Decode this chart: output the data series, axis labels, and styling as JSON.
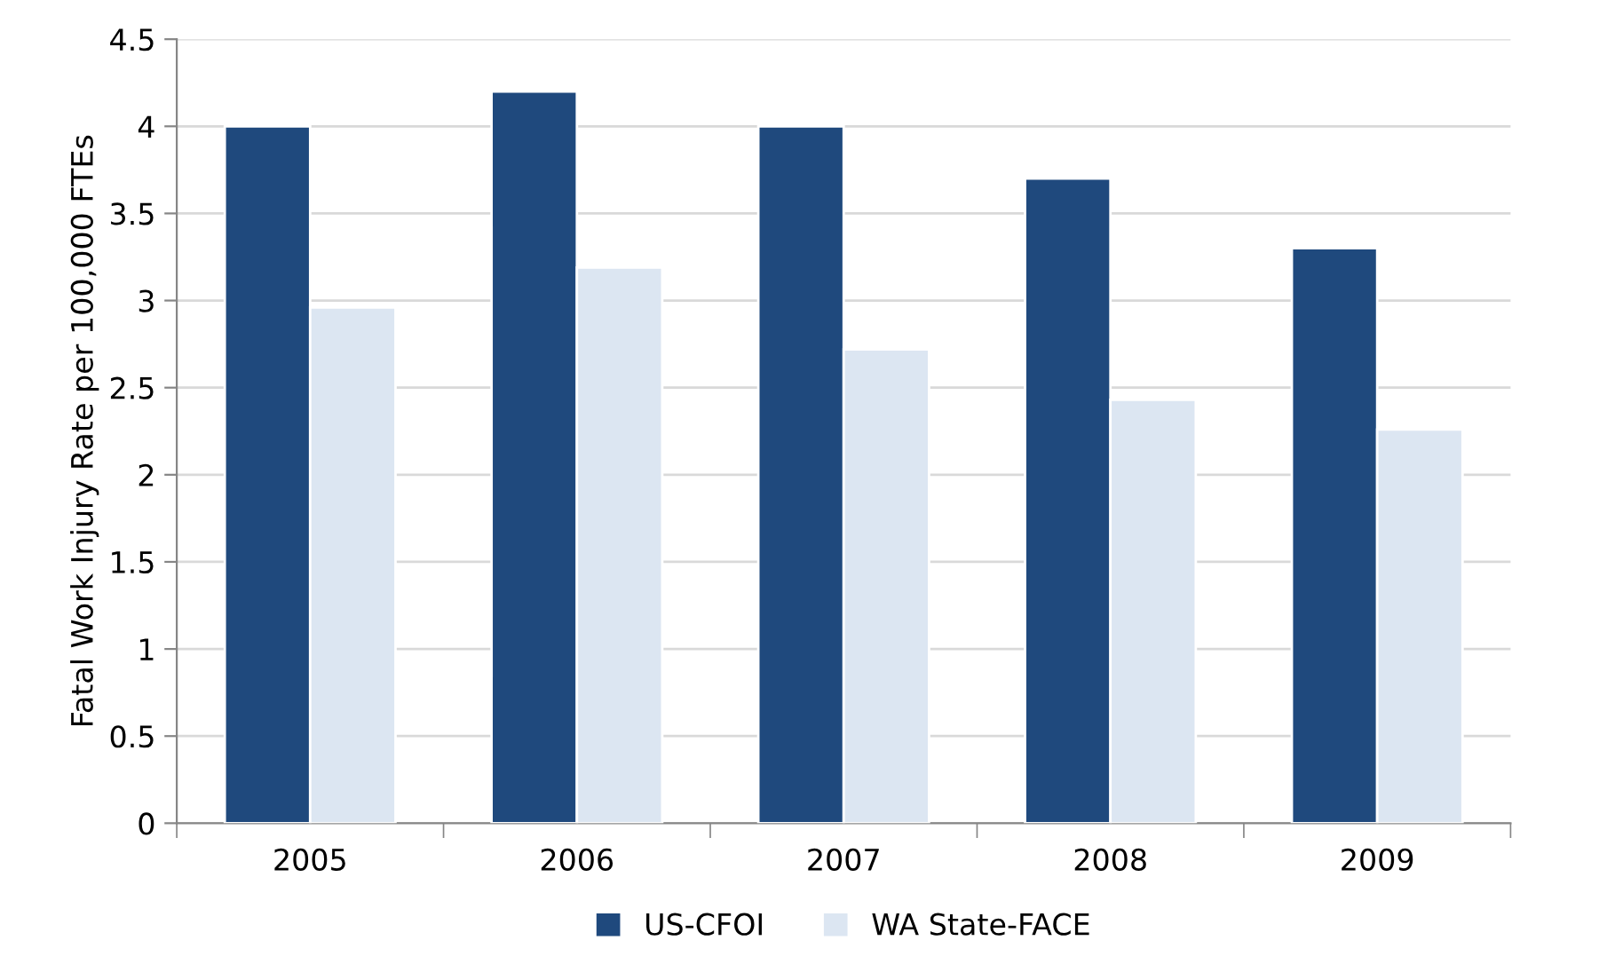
{
  "chart_data": {
    "type": "bar",
    "ylabel": "Fatal Work Injury Rate per 100,000 FTEs",
    "categories": [
      "2005",
      "2006",
      "2007",
      "2008",
      "2009"
    ],
    "series": [
      {
        "name": "US-CFOI",
        "color": "#1f497d",
        "values": [
          4.0,
          4.2,
          4.0,
          3.7,
          3.3
        ]
      },
      {
        "name": "WA State-FACE",
        "color": "#dce6f2",
        "values": [
          2.96,
          3.19,
          2.72,
          2.43,
          2.26
        ]
      }
    ],
    "ylim": [
      0,
      4.5
    ],
    "yticks": [
      0,
      0.5,
      1,
      1.5,
      2,
      2.5,
      3,
      3.5,
      4,
      4.5
    ],
    "grid": "y",
    "legend": "bottom"
  }
}
